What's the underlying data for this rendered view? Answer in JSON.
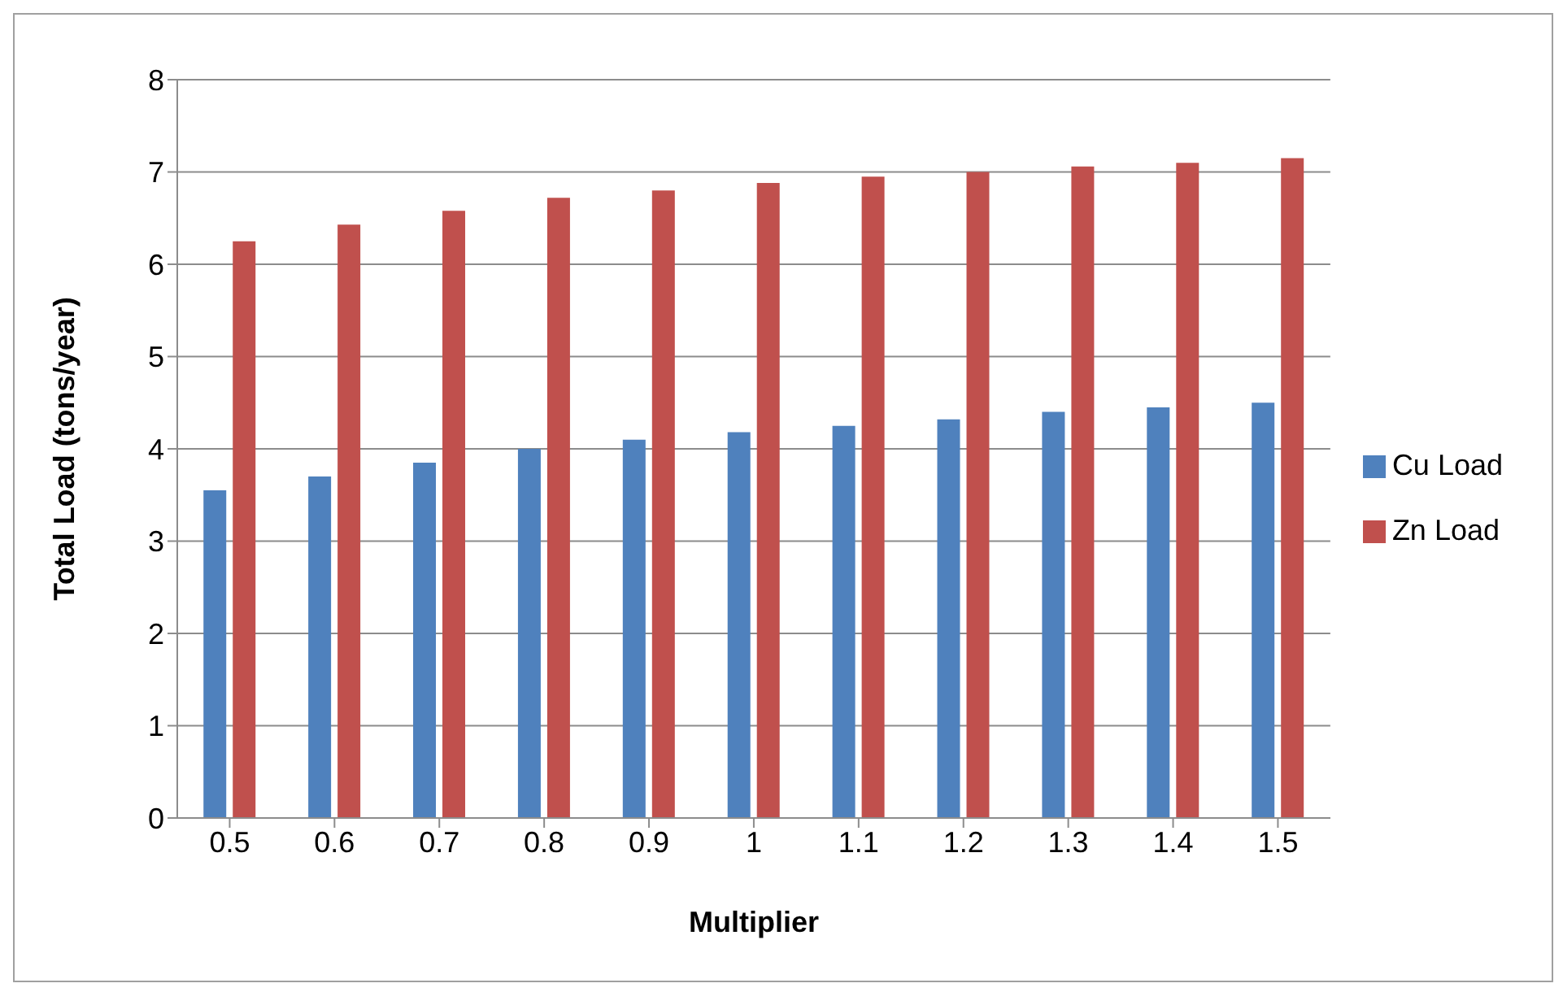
{
  "chart_data": {
    "type": "bar",
    "xlabel": "Multiplier",
    "ylabel": "Total Load (tons/year)",
    "categories": [
      "0.5",
      "0.6",
      "0.7",
      "0.8",
      "0.9",
      "1",
      "1.1",
      "1.2",
      "1.3",
      "1.4",
      "1.5"
    ],
    "series": [
      {
        "name": "Cu Load",
        "color": "#4f81bd",
        "values": [
          3.55,
          3.7,
          3.85,
          4.0,
          4.1,
          4.18,
          4.25,
          4.32,
          4.4,
          4.45,
          4.5
        ]
      },
      {
        "name": "Zn Load",
        "color": "#c0504d",
        "values": [
          6.25,
          6.43,
          6.58,
          6.72,
          6.8,
          6.88,
          6.95,
          7.0,
          7.06,
          7.1,
          7.15
        ]
      }
    ],
    "ylim": [
      0,
      8
    ],
    "yticks": [
      0,
      1,
      2,
      3,
      4,
      5,
      6,
      7,
      8
    ],
    "grid": "y",
    "legend": "right"
  }
}
